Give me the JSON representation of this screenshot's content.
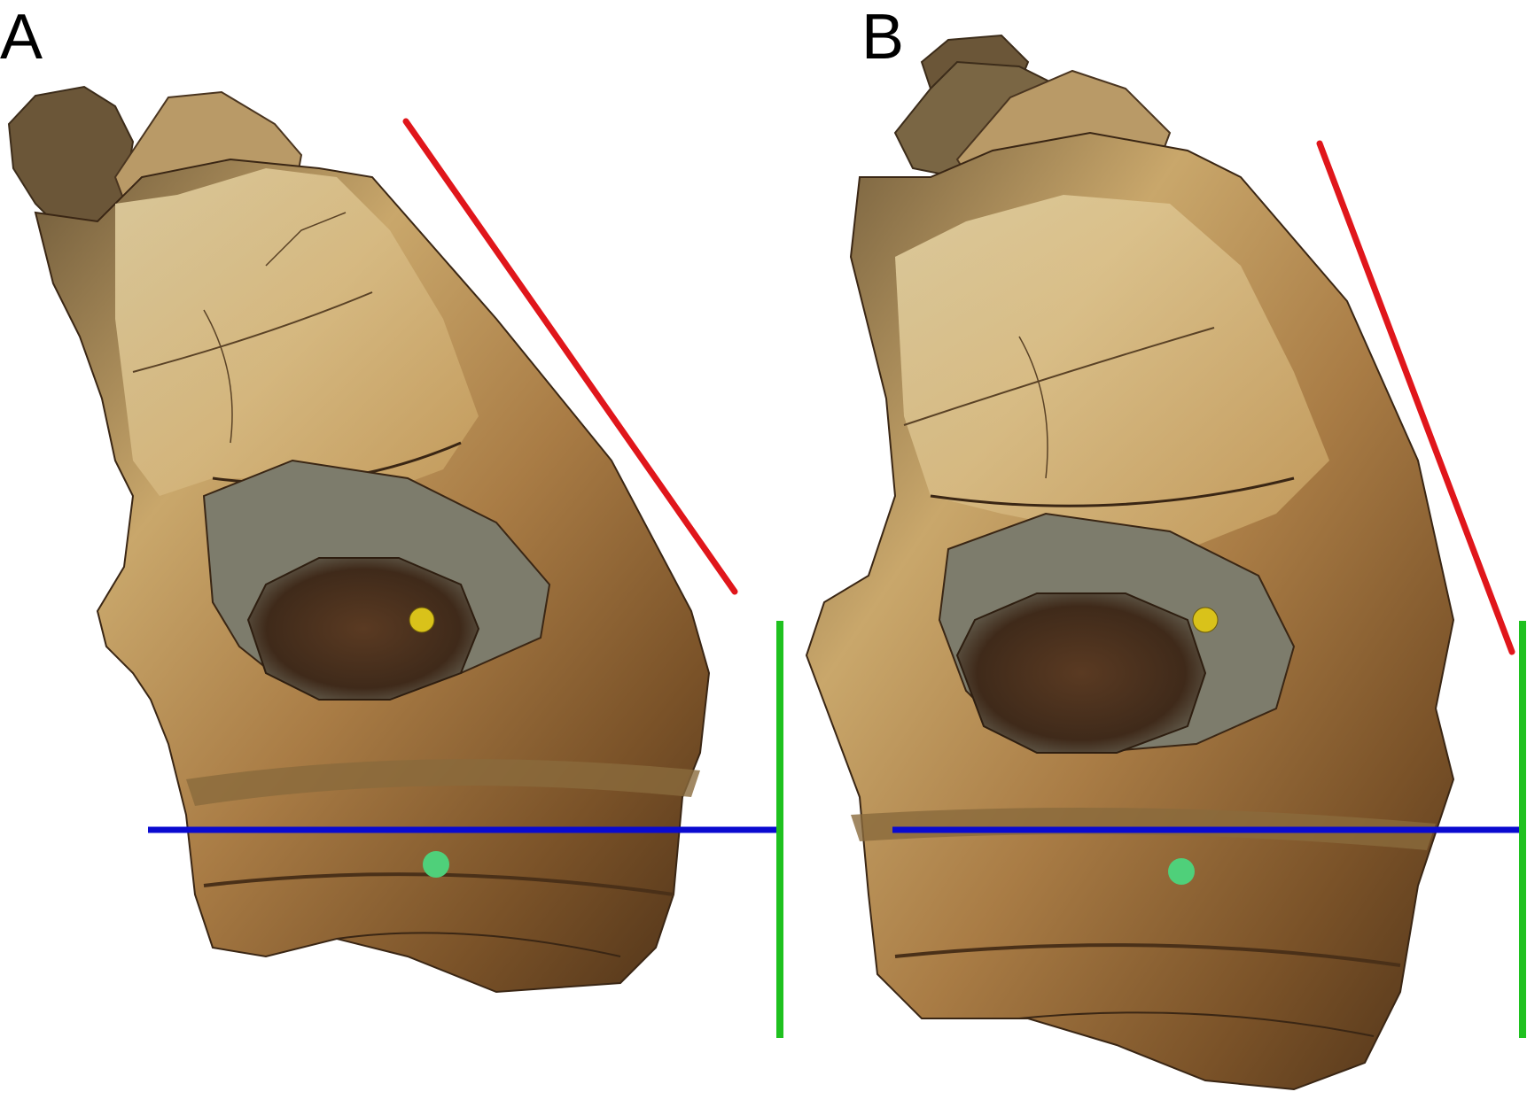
{
  "figure": {
    "panels": [
      {
        "id": "A",
        "label": "A",
        "content": "fossil-bone-photo",
        "overlay_colors": {
          "red_line": "#e0161b",
          "blue_line": "#0a0ad0",
          "green_line": "#1fc11f"
        }
      },
      {
        "id": "B",
        "label": "B",
        "content": "fossil-bone-photo",
        "overlay_colors": {
          "red_line": "#e0161b",
          "blue_line": "#0a0ad0",
          "green_line": "#1fc11f"
        }
      }
    ]
  }
}
